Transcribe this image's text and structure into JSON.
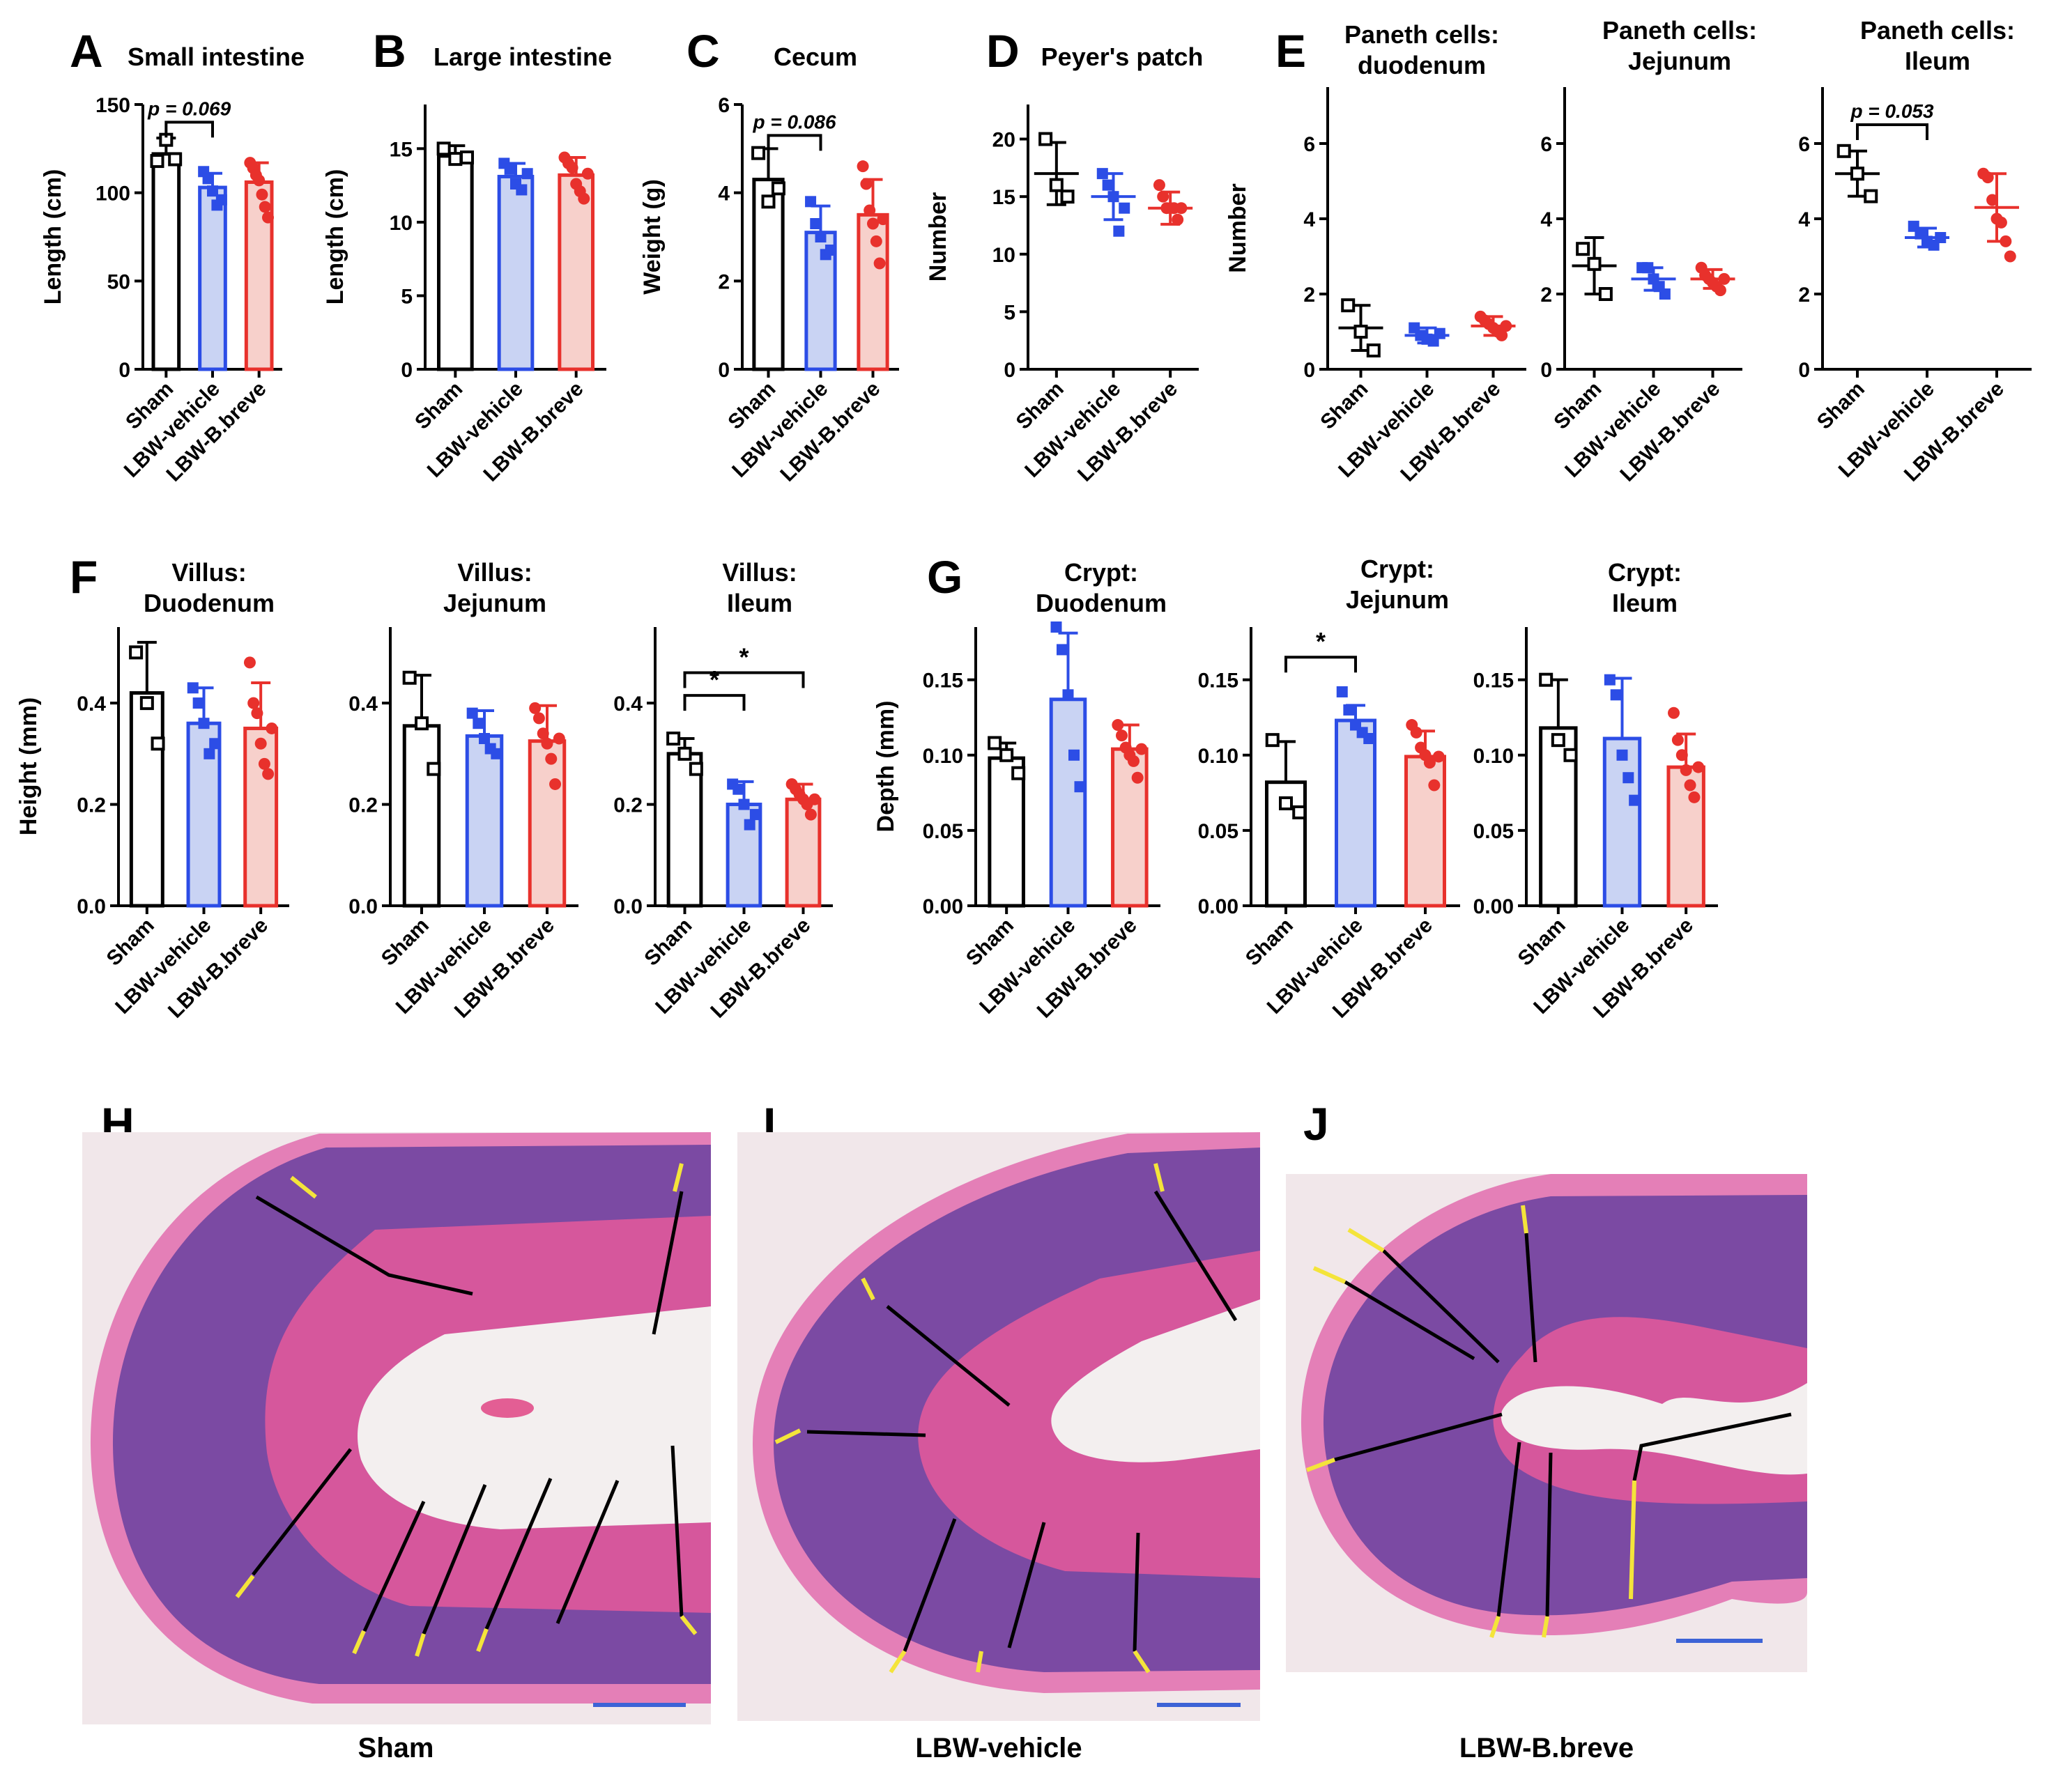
{
  "colors": {
    "sham_edge": "#000000",
    "sham_fill": "#ffffff",
    "vehicle_edge": "#2c4de6",
    "vehicle_fill": "#c9d3f3",
    "breve_edge": "#e8312c",
    "breve_fill": "#f7d0cb",
    "tissue_light": "#f3c1dc",
    "tissue_purple": "#7b4aa3",
    "tissue_pink": "#d6579c",
    "lumen": "#f3efef",
    "scale_bar": "#3d63d6",
    "measure_black": "#000000",
    "measure_yellow": "#f4e43a"
  },
  "group_labels": [
    "Sham",
    "LBW-vehicle",
    "LBW-B.breve"
  ],
  "panel_letters": {
    "A": "A",
    "B": "B",
    "C": "C",
    "D": "D",
    "E": "E",
    "F": "F",
    "G": "G",
    "H": "H",
    "I": "I",
    "J": "J"
  },
  "chart_data": [
    {
      "id": "A",
      "type": "bar",
      "title": "Small intestine",
      "ylabel": "Length (cm)",
      "categories": [
        "Sham",
        "LBW-vehicle",
        "LBW-B.breve"
      ],
      "ylim": [
        0,
        150
      ],
      "yticks": [
        0,
        50,
        100,
        150
      ],
      "ytick_labels": [
        "0",
        "50",
        "100",
        "150"
      ],
      "values": [
        122,
        103,
        106
      ],
      "errors": [
        9,
        8,
        11
      ],
      "points": [
        [
          118,
          130,
          119
        ],
        [
          112,
          108,
          101,
          93,
          96
        ],
        [
          117,
          114,
          110,
          107,
          99,
          92,
          86
        ]
      ],
      "brackets": [
        {
          "from": 0,
          "to": 1,
          "label": "p = 0.069",
          "y": 140
        }
      ]
    },
    {
      "id": "B",
      "type": "bar",
      "title": "Large intestine",
      "ylabel": "Length (cm)",
      "categories": [
        "Sham",
        "LBW-vehicle",
        "LBW-B.breve"
      ],
      "ylim": [
        0,
        18
      ],
      "yticks": [
        0,
        5,
        10,
        15
      ],
      "ytick_labels": [
        "0",
        "5",
        "10",
        "15"
      ],
      "values": [
        14.5,
        13.1,
        13.2
      ],
      "errors": [
        0.7,
        0.9,
        1.2
      ],
      "points": [
        [
          15,
          14.3,
          14.4
        ],
        [
          14,
          13.6,
          12.6,
          12.2,
          13.3
        ],
        [
          14.4,
          14,
          13.7,
          12.6,
          12.1,
          11.6,
          13.3
        ]
      ],
      "brackets": []
    },
    {
      "id": "C",
      "type": "bar",
      "title": "Cecum",
      "ylabel": "Weight (g)",
      "categories": [
        "Sham",
        "LBW-vehicle",
        "LBW-B.breve"
      ],
      "ylim": [
        0,
        6
      ],
      "yticks": [
        0,
        2,
        4,
        6
      ],
      "ytick_labels": [
        "0",
        "2",
        "4",
        "6"
      ],
      "values": [
        4.3,
        3.1,
        3.5
      ],
      "errors": [
        0.7,
        0.6,
        0.8
      ],
      "points": [
        [
          4.9,
          3.8,
          4.1
        ],
        [
          3.8,
          3.3,
          3,
          2.6,
          2.7
        ],
        [
          4.6,
          4.2,
          3.6,
          3.3,
          2.9,
          2.4,
          3.4
        ]
      ],
      "brackets": [
        {
          "from": 0,
          "to": 1,
          "label": "p = 0.086",
          "y": 5.3
        }
      ]
    },
    {
      "id": "D",
      "type": "scatter",
      "title": "Peyer's patch",
      "ylabel": "Number",
      "categories": [
        "Sham",
        "LBW-vehicle",
        "LBW-B.breve"
      ],
      "ylim": [
        0,
        23
      ],
      "yticks": [
        0,
        5,
        10,
        15,
        20
      ],
      "ytick_labels": [
        "0",
        "5",
        "10",
        "15",
        "20"
      ],
      "values": [
        17,
        15,
        14
      ],
      "errors": [
        2.7,
        2.0,
        1.4
      ],
      "points": [
        [
          20,
          16,
          15
        ],
        [
          17,
          16,
          15,
          12,
          14
        ],
        [
          16,
          15,
          14,
          14,
          14,
          13,
          14
        ]
      ],
      "brackets": []
    },
    {
      "id": "E1",
      "type": "scatter",
      "title": "Paneth cells:\nduodenum",
      "ylabel": "Number",
      "categories": [
        "Sham",
        "LBW-vehicle",
        "LBW-B.breve"
      ],
      "ylim": [
        0,
        7.5
      ],
      "yticks": [
        0,
        2,
        4,
        6
      ],
      "ytick_labels": [
        "0",
        "2",
        "4",
        "6"
      ],
      "values": [
        1.1,
        0.9,
        1.15
      ],
      "errors": [
        0.6,
        0.2,
        0.25
      ],
      "points": [
        [
          1.7,
          1.0,
          0.5
        ],
        [
          1.1,
          0.9,
          0.8,
          0.75,
          0.95
        ],
        [
          1.4,
          1.3,
          1.2,
          1.1,
          1.0,
          0.9,
          1.15
        ]
      ],
      "brackets": []
    },
    {
      "id": "E2",
      "type": "scatter",
      "title": "Paneth cells:\nJejunum",
      "ylabel": "",
      "categories": [
        "Sham",
        "LBW-vehicle",
        "LBW-B.breve"
      ],
      "ylim": [
        0,
        7.5
      ],
      "yticks": [
        0,
        2,
        4,
        6
      ],
      "ytick_labels": [
        "0",
        "2",
        "4",
        "6"
      ],
      "values": [
        2.75,
        2.4,
        2.4
      ],
      "errors": [
        0.75,
        0.3,
        0.25
      ],
      "points": [
        [
          3.2,
          2.8,
          2.0
        ],
        [
          2.7,
          2.7,
          2.4,
          2.2,
          2.0
        ],
        [
          2.7,
          2.5,
          2.4,
          2.3,
          2.2,
          2.1,
          2.4
        ]
      ],
      "brackets": []
    },
    {
      "id": "E3",
      "type": "scatter",
      "title": "Paneth cells:\nIleum",
      "ylabel": "",
      "categories": [
        "Sham",
        "LBW-vehicle",
        "LBW-B.breve"
      ],
      "ylim": [
        0,
        7.5
      ],
      "yticks": [
        0,
        2,
        4,
        6
      ],
      "ytick_labels": [
        "0",
        "2",
        "4",
        "6"
      ],
      "values": [
        5.2,
        3.5,
        4.3
      ],
      "errors": [
        0.6,
        0.25,
        0.9
      ],
      "points": [
        [
          5.8,
          5.2,
          4.6
        ],
        [
          3.8,
          3.6,
          3.4,
          3.3,
          3.5
        ],
        [
          5.2,
          5.1,
          4.5,
          4.0,
          3.9,
          3.4,
          3.0
        ]
      ],
      "brackets": [
        {
          "from": 0,
          "to": 1,
          "label": "p = 0.053",
          "y": 6.5
        }
      ]
    },
    {
      "id": "F1",
      "type": "bar",
      "title": "Villus:\nDuodenum",
      "ylabel": "Height (mm)",
      "categories": [
        "Sham",
        "LBW-vehicle",
        "LBW-B.breve"
      ],
      "ylim": [
        0,
        0.55
      ],
      "yticks": [
        0,
        0.2,
        0.4
      ],
      "ytick_labels": [
        "0.0",
        "0.2",
        "0.4"
      ],
      "values": [
        0.42,
        0.36,
        0.35
      ],
      "errors": [
        0.1,
        0.07,
        0.09
      ],
      "points": [
        [
          0.5,
          0.4,
          0.32
        ],
        [
          0.43,
          0.4,
          0.36,
          0.3,
          0.32
        ],
        [
          0.48,
          0.4,
          0.38,
          0.32,
          0.28,
          0.26,
          0.35
        ]
      ],
      "brackets": []
    },
    {
      "id": "F2",
      "type": "bar",
      "title": "Villus:\nJejunum",
      "ylabel": "",
      "categories": [
        "Sham",
        "LBW-vehicle",
        "LBW-B.breve"
      ],
      "ylim": [
        0,
        0.55
      ],
      "yticks": [
        0,
        0.2,
        0.4
      ],
      "ytick_labels": [
        "0.0",
        "0.2",
        "0.4"
      ],
      "values": [
        0.355,
        0.335,
        0.325
      ],
      "errors": [
        0.1,
        0.05,
        0.07
      ],
      "points": [
        [
          0.45,
          0.36,
          0.27
        ],
        [
          0.38,
          0.36,
          0.33,
          0.31,
          0.3
        ],
        [
          0.39,
          0.37,
          0.34,
          0.32,
          0.29,
          0.24,
          0.33
        ]
      ],
      "brackets": []
    },
    {
      "id": "F3",
      "type": "bar",
      "title": "Villus:\nIleum",
      "ylabel": "",
      "categories": [
        "Sham",
        "LBW-vehicle",
        "LBW-B.breve"
      ],
      "ylim": [
        0,
        0.55
      ],
      "yticks": [
        0,
        0.2,
        0.4
      ],
      "ytick_labels": [
        "0.0",
        "0.2",
        "0.4"
      ],
      "values": [
        0.3,
        0.2,
        0.21
      ],
      "errors": [
        0.03,
        0.045,
        0.03
      ],
      "points": [
        [
          0.33,
          0.3,
          0.27
        ],
        [
          0.24,
          0.23,
          0.2,
          0.16,
          0.18
        ],
        [
          0.24,
          0.23,
          0.22,
          0.21,
          0.2,
          0.18,
          0.21
        ]
      ],
      "brackets": [
        {
          "from": 0,
          "to": 1,
          "label": "*",
          "y": 0.415
        },
        {
          "from": 0,
          "to": 2,
          "label": "*",
          "y": 0.46
        }
      ]
    },
    {
      "id": "G1",
      "type": "bar",
      "title": "Crypt:\nDuodenum",
      "ylabel": "Depth (mm)",
      "categories": [
        "Sham",
        "LBW-vehicle",
        "LBW-B.breve"
      ],
      "ylim": [
        0,
        0.185
      ],
      "yticks": [
        0,
        0.05,
        0.1,
        0.15
      ],
      "ytick_labels": [
        "0.00",
        "0.05",
        "0.10",
        "0.15"
      ],
      "values": [
        0.098,
        0.137,
        0.104
      ],
      "errors": [
        0.01,
        0.044,
        0.016
      ],
      "points": [
        [
          0.108,
          0.1,
          0.088
        ],
        [
          0.185,
          0.17,
          0.14,
          0.1,
          0.079
        ],
        [
          0.12,
          0.113,
          0.105,
          0.1,
          0.096,
          0.085,
          0.104
        ]
      ],
      "brackets": []
    },
    {
      "id": "G2",
      "type": "bar",
      "title": "Crypt:\nJejunum",
      "ylabel": "",
      "categories": [
        "Sham",
        "LBW-vehicle",
        "LBW-B.breve"
      ],
      "ylim": [
        0,
        0.185
      ],
      "yticks": [
        0,
        0.05,
        0.1,
        0.15
      ],
      "ytick_labels": [
        "0.00",
        "0.05",
        "0.10",
        "0.15"
      ],
      "values": [
        0.082,
        0.123,
        0.099
      ],
      "errors": [
        0.027,
        0.01,
        0.017
      ],
      "points": [
        [
          0.11,
          0.068,
          0.062
        ],
        [
          0.142,
          0.13,
          0.12,
          0.115,
          0.111
        ],
        [
          0.12,
          0.115,
          0.105,
          0.1,
          0.095,
          0.08,
          0.099
        ]
      ],
      "brackets": [
        {
          "from": 0,
          "to": 1,
          "label": "*",
          "y": 0.165
        }
      ]
    },
    {
      "id": "G3",
      "type": "bar",
      "title": "Crypt:\nIleum",
      "ylabel": "",
      "categories": [
        "Sham",
        "LBW-vehicle",
        "LBW-B.breve"
      ],
      "ylim": [
        0,
        0.185
      ],
      "yticks": [
        0,
        0.05,
        0.1,
        0.15
      ],
      "ytick_labels": [
        "0.00",
        "0.05",
        "0.10",
        "0.15"
      ],
      "values": [
        0.118,
        0.111,
        0.092
      ],
      "errors": [
        0.032,
        0.04,
        0.022
      ],
      "points": [
        [
          0.15,
          0.11,
          0.1
        ],
        [
          0.15,
          0.14,
          0.1,
          0.085,
          0.07
        ],
        [
          0.128,
          0.11,
          0.1,
          0.09,
          0.08,
          0.072,
          0.092
        ]
      ],
      "brackets": []
    }
  ],
  "histology": {
    "captions": [
      "Sham",
      "LBW-vehicle",
      "LBW-B.breve"
    ]
  }
}
